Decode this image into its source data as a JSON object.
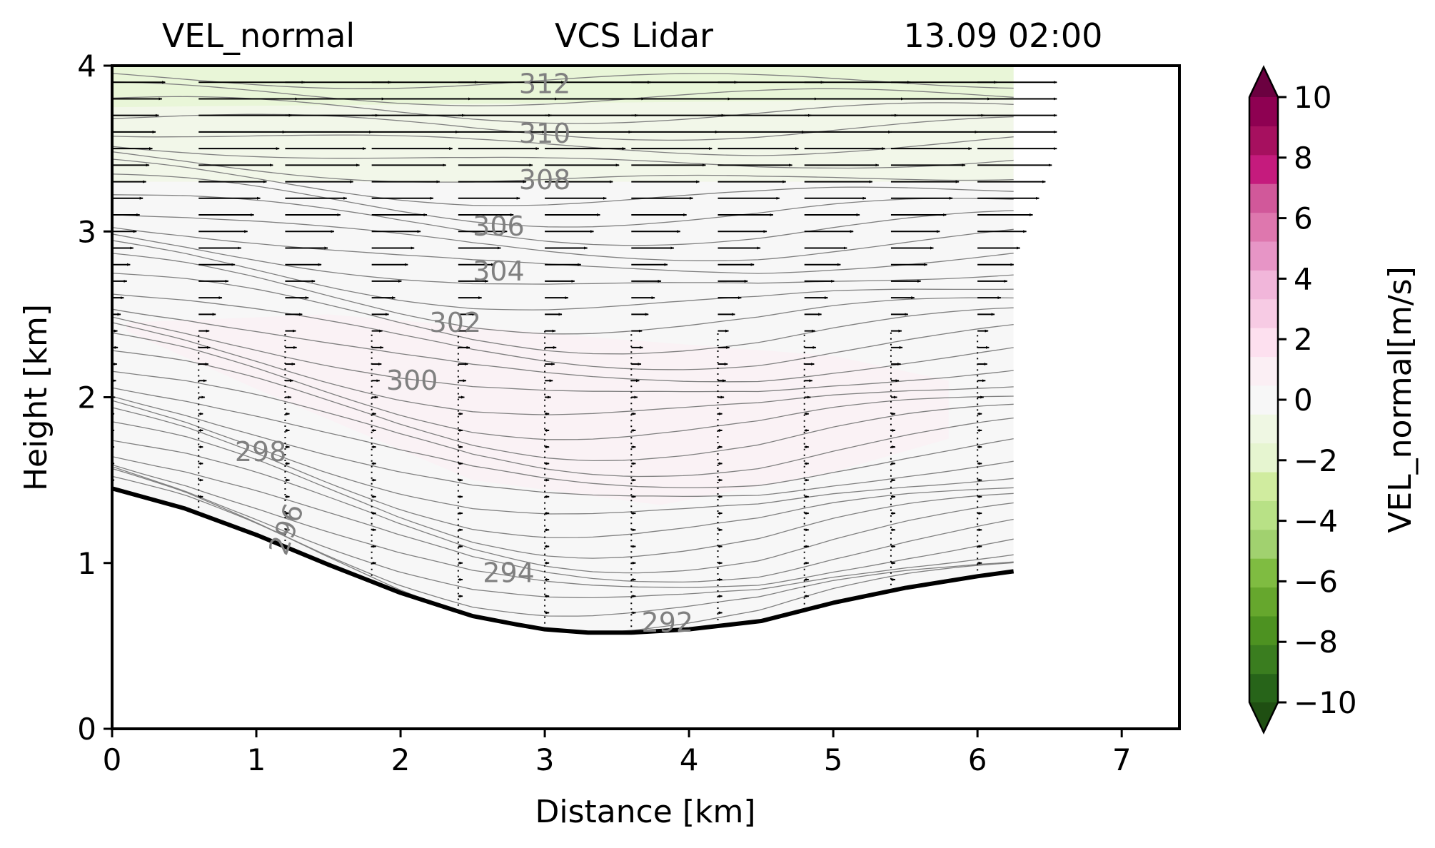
{
  "chart_data": {
    "type": "heatmap",
    "titles": {
      "left": "VEL_normal",
      "center": "VCS Lidar",
      "right": "13.09 02:00"
    },
    "xlabel": "Distance [km]",
    "ylabel": "Height [km]",
    "xlim": [
      0,
      7.4
    ],
    "ylim": [
      0,
      4
    ],
    "x_ticks": [
      "0",
      "1",
      "2",
      "3",
      "4",
      "5",
      "6",
      "7"
    ],
    "y_ticks": [
      "0",
      "1",
      "2",
      "3",
      "4"
    ],
    "colorbar": {
      "label": "VEL_normal[m/s]",
      "range": [
        -10,
        10
      ],
      "step": 1,
      "extend": "both",
      "ticks": [
        "−10",
        "−8",
        "−6",
        "−4",
        "−2",
        "0",
        "2",
        "4",
        "6",
        "8",
        "10"
      ],
      "colors": [
        "#276419",
        "#3a7d1f",
        "#4d9221",
        "#66a72d",
        "#7fbc41",
        "#a1d16f",
        "#b8e186",
        "#d0ec9f",
        "#e6f5d0",
        "#eff7e3",
        "#f7f7f7",
        "#fbeff4",
        "#fde0ef",
        "#f7cbe4",
        "#f1b6da",
        "#e795c6",
        "#de77ae",
        "#d1589a",
        "#c51b7d",
        "#a6105f",
        "#8e0152"
      ],
      "under_color": "#1f4f12",
      "over_color": "#6b0140"
    },
    "terrain": {
      "x": [
        0,
        0.5,
        1.0,
        1.5,
        2.0,
        2.5,
        2.8,
        3.0,
        3.3,
        3.6,
        4.0,
        4.5,
        5.0,
        5.5,
        6.0,
        6.25
      ],
      "y": [
        1.45,
        1.33,
        1.17,
        0.99,
        0.82,
        0.68,
        0.63,
        0.6,
        0.58,
        0.58,
        0.6,
        0.65,
        0.76,
        0.85,
        0.92,
        0.95
      ]
    },
    "data_extent_x": [
      0,
      6.25
    ],
    "contours": {
      "color": "#808080",
      "levels": [
        {
          "label": "292",
          "x": 3.85,
          "y": 0.63,
          "angle": 0
        },
        {
          "label": "294",
          "x": 2.75,
          "y": 0.93,
          "angle": 0
        },
        {
          "label": "296",
          "x": 1.22,
          "y": 1.2,
          "angle": -70
        },
        {
          "label": "298",
          "x": 1.03,
          "y": 1.66,
          "angle": 0
        },
        {
          "label": "300",
          "x": 2.08,
          "y": 2.09,
          "angle": 0
        },
        {
          "label": "302",
          "x": 2.38,
          "y": 2.44,
          "angle": 0
        },
        {
          "label": "304",
          "x": 2.68,
          "y": 2.75,
          "angle": 0
        },
        {
          "label": "306",
          "x": 2.68,
          "y": 3.02,
          "angle": 0
        },
        {
          "label": "308",
          "x": 3.0,
          "y": 3.3,
          "angle": 0
        },
        {
          "label": "310",
          "x": 3.0,
          "y": 3.58,
          "angle": 0
        },
        {
          "label": "312",
          "x": 3.0,
          "y": 3.88,
          "angle": 0
        }
      ]
    },
    "value_regions": [
      {
        "level": 1,
        "description_value": 1,
        "x": [
          0.1,
          1.5,
          3.5,
          5.0,
          5.8,
          5.8,
          5.0,
          3.8,
          2.5,
          1.0,
          0.1
        ],
        "y": [
          2.45,
          2.5,
          2.35,
          2.25,
          2.1,
          1.75,
          1.55,
          1.35,
          1.5,
          2.05,
          2.4
        ]
      },
      {
        "level": -1,
        "description_value": -1,
        "x": [
          0,
          6.25,
          6.25,
          0
        ],
        "y": [
          4.0,
          4.0,
          3.3,
          3.3
        ]
      },
      {
        "level": -2,
        "description_value": -2,
        "x": [
          0,
          6.25,
          6.25,
          0
        ],
        "y": [
          4.0,
          4.0,
          3.8,
          3.75
        ]
      }
    ],
    "wind_vectors": {
      "columns_x": [
        0,
        0.6,
        1.2,
        1.8,
        2.4,
        3.0,
        3.6,
        4.2,
        4.8,
        5.4,
        6.0
      ],
      "heights_y": [
        0.5,
        0.6,
        0.7,
        0.8,
        0.9,
        1.0,
        1.1,
        1.2,
        1.3,
        1.4,
        1.5,
        1.6,
        1.7,
        1.8,
        1.9,
        2.0,
        2.1,
        2.2,
        2.3,
        2.4,
        2.5,
        2.6,
        2.7,
        2.8,
        2.9,
        3.0,
        3.1,
        3.2,
        3.3,
        3.4,
        3.5,
        3.6,
        3.7,
        3.8,
        3.9,
        4.0
      ]
    }
  }
}
